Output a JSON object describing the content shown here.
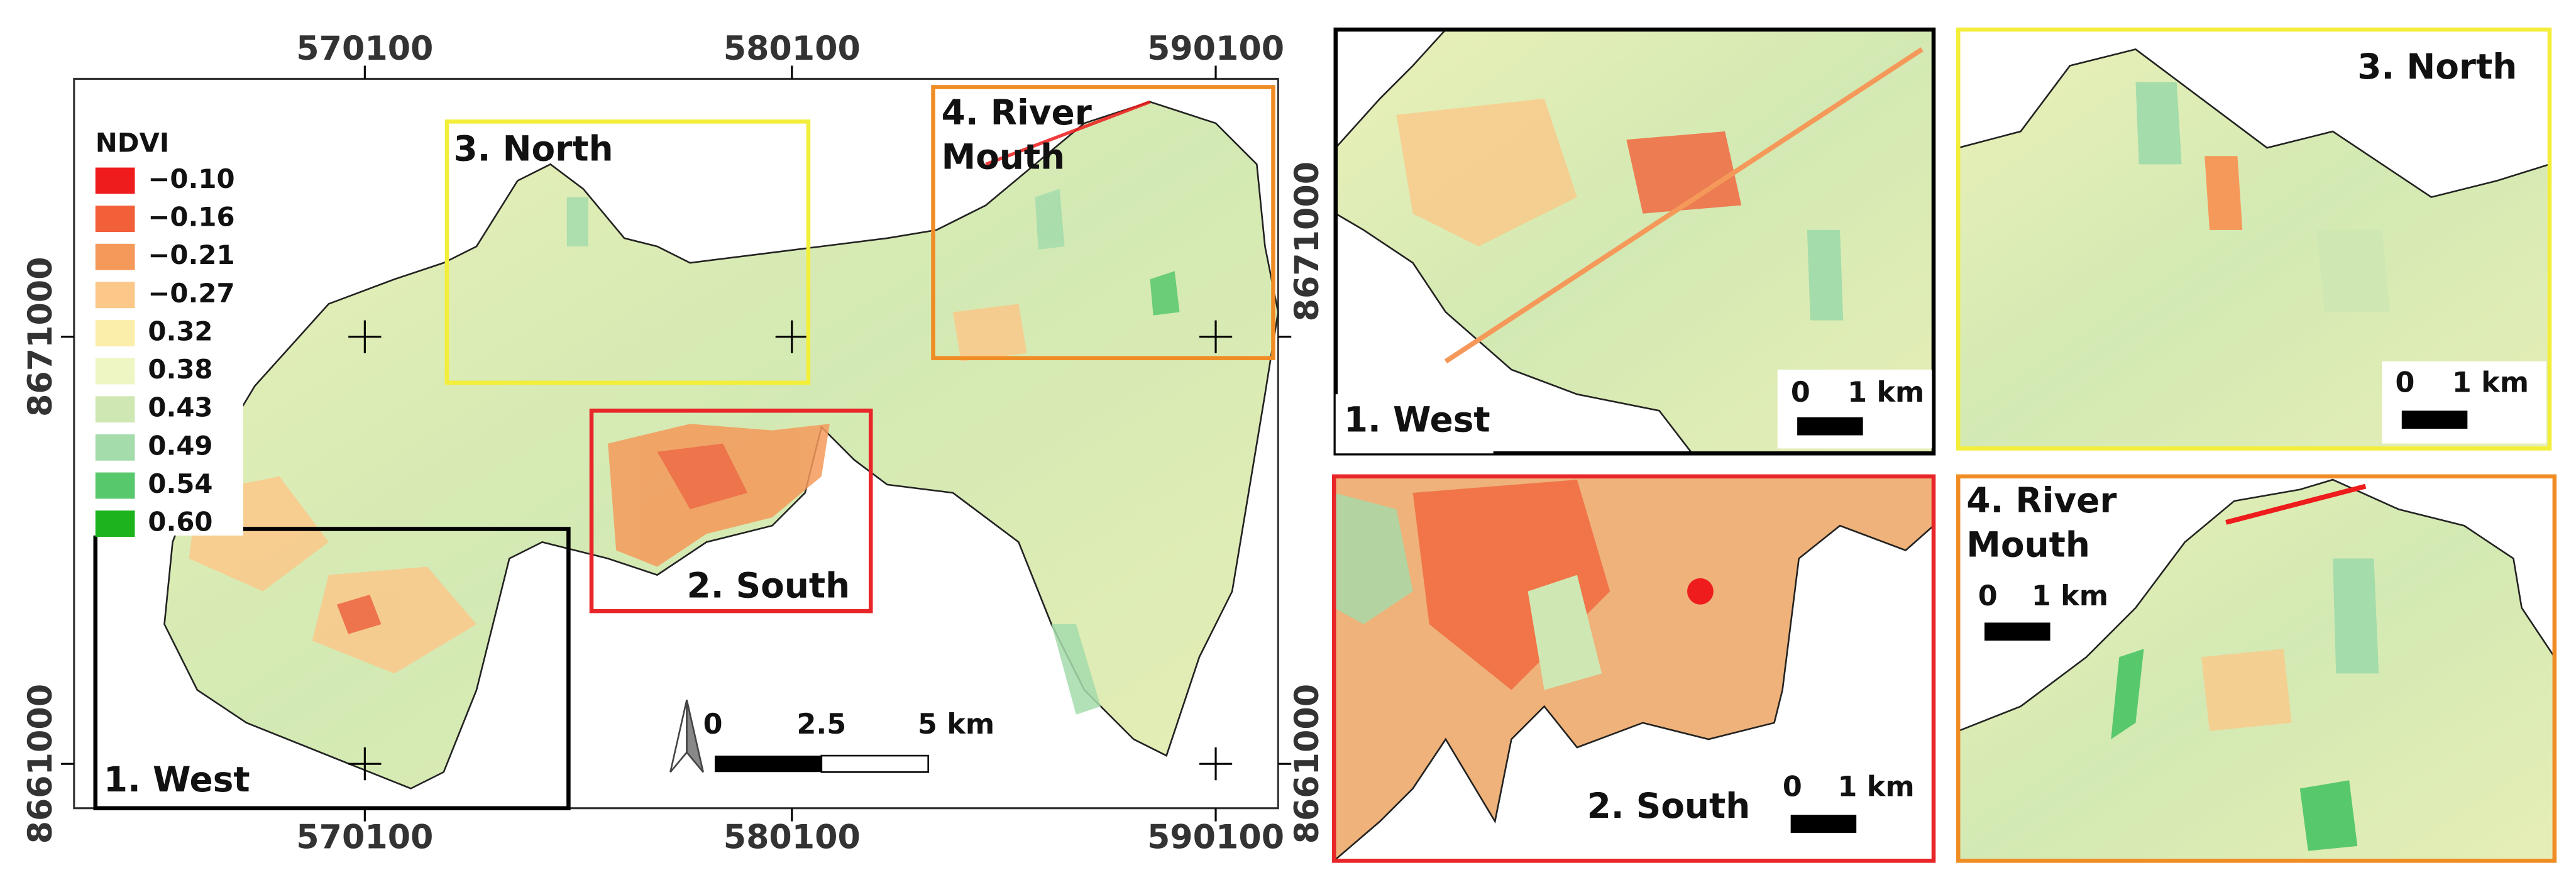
{
  "main_map": {
    "x_labels": [
      "570100",
      "580100",
      "590100"
    ],
    "y_labels": [
      "8671000",
      "8661000"
    ],
    "legend": {
      "title": "NDVI",
      "items": [
        {
          "label": "−0.10",
          "color": "#ee1c1c"
        },
        {
          "label": "−0.16",
          "color": "#f2603a"
        },
        {
          "label": "−0.21",
          "color": "#f5995a"
        },
        {
          "label": "−0.27",
          "color": "#fbc88a"
        },
        {
          "label": "0.32",
          "color": "#fbeeaa"
        },
        {
          "label": "0.38",
          "color": "#eef6c4"
        },
        {
          "label": "0.43",
          "color": "#cfe8b3"
        },
        {
          "label": "0.49",
          "color": "#a4dcab"
        },
        {
          "label": "0.54",
          "color": "#58c86c"
        },
        {
          "label": "0.60",
          "color": "#1db31d"
        }
      ]
    },
    "scale_bar": [
      "0",
      "2.5",
      "5 km"
    ],
    "regions": [
      {
        "lines": [
          "1. West"
        ],
        "color": "#000000"
      },
      {
        "lines": [
          "2. South"
        ],
        "color": "#e8262a"
      },
      {
        "lines": [
          "3. North"
        ],
        "color": "#f2ee3a"
      },
      {
        "lines": [
          "4. River",
          "Mouth"
        ],
        "color": "#f08c24"
      }
    ]
  },
  "insets": [
    {
      "lines": [
        "1. West"
      ],
      "scale_bar": [
        "0",
        "1 km"
      ]
    },
    {
      "lines": [
        "2. South"
      ],
      "scale_bar": [
        "0",
        "1 km"
      ]
    },
    {
      "lines": [
        "3. North"
      ],
      "scale_bar": [
        "0",
        "1 km"
      ]
    },
    {
      "lines": [
        "4. River",
        "Mouth"
      ],
      "scale_bar": [
        "0",
        "1 km"
      ]
    }
  ]
}
